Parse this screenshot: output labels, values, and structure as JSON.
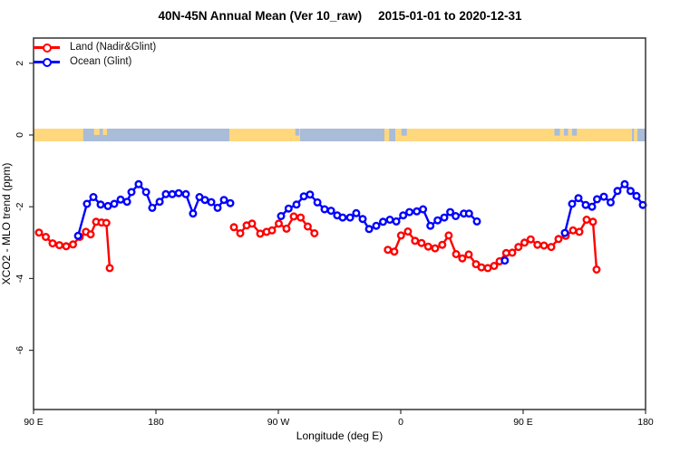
{
  "header": {
    "title_main": "40N-45N Annual Mean (Ver 10_raw)",
    "title_dates": "2015-01-01 to 2020-12-31"
  },
  "legend": {
    "land_label": "Land (Nadir&Glint)",
    "ocean_label": "Ocean (Glint)"
  },
  "colors": {
    "land_series": "#ff0000",
    "ocean_series": "#0000ff",
    "map_land": "#ffd87e",
    "map_ocean": "#a9bcd8",
    "axis": "#333333",
    "text": "#000000"
  },
  "chart_data": {
    "type": "line",
    "title": "40N-45N Annual Mean (Ver 10_raw)  2015-01-01 to 2020-12-31",
    "xlabel": "Longitude (deg E)",
    "ylabel": "XCO2 - MLO trend (ppm)",
    "x_axis": {
      "note": "axis spans 450 deg of longitude starting at 90E and wrapping past 180 twice",
      "range_deg": [
        0,
        450
      ],
      "ticks": [
        {
          "deg": 0,
          "label": "90 E"
        },
        {
          "deg": 90,
          "label": "180"
        },
        {
          "deg": 180,
          "label": "90 W"
        },
        {
          "deg": 270,
          "label": "0"
        },
        {
          "deg": 360,
          "label": "90 E"
        },
        {
          "deg": 450,
          "label": "180"
        }
      ]
    },
    "y_axis": {
      "range": [
        -7.65,
        2.7
      ],
      "ticks": [
        {
          "v": 2,
          "label": "2"
        },
        {
          "v": 0,
          "label": "0"
        },
        {
          "v": -2,
          "label": "-2"
        },
        {
          "v": -4,
          "label": "-4"
        },
        {
          "v": -6,
          "label": "-6"
        }
      ],
      "grid": false
    },
    "legend_position": "top-left",
    "map_band": {
      "center_value": 0,
      "land_segments_deg": [
        [
          0,
          36.5
        ],
        [
          144,
          196
        ],
        [
          258,
          261.5
        ],
        [
          266,
          440
        ],
        [
          441.5,
          444
        ]
      ],
      "island_segments_deg": [
        [
          44.5,
          48.5
        ],
        [
          51,
          54
        ]
      ],
      "water_patches_deg": [
        [
          192.5,
          195.5
        ],
        [
          270.5,
          274.5
        ],
        [
          383,
          387
        ],
        [
          390,
          393
        ],
        [
          396,
          399.5
        ]
      ]
    },
    "series": [
      {
        "name": "Land (Nadir&Glint)",
        "color": "#ff0000",
        "segments": [
          [
            [
              4,
              -2.72
            ],
            [
              9,
              -2.84
            ],
            [
              14,
              -3.02
            ],
            [
              19,
              -3.07
            ],
            [
              24,
              -3.1
            ],
            [
              29,
              -3.05
            ],
            [
              34,
              -2.84
            ],
            [
              38.5,
              -2.7
            ],
            [
              42,
              -2.77
            ],
            [
              46,
              -2.42
            ],
            [
              50,
              -2.44
            ],
            [
              53.5,
              -2.45
            ],
            [
              56,
              -3.71
            ]
          ],
          [
            [
              147.3,
              -2.57
            ],
            [
              152,
              -2.74
            ],
            [
              156.7,
              -2.52
            ],
            [
              160.7,
              -2.47
            ],
            [
              166.7,
              -2.75
            ],
            [
              171.3,
              -2.7
            ],
            [
              175.3,
              -2.66
            ],
            [
              180.3,
              -2.47
            ],
            [
              186,
              -2.61
            ],
            [
              191.3,
              -2.27
            ],
            [
              196.4,
              -2.3
            ],
            [
              201.6,
              -2.55
            ],
            [
              206.5,
              -2.74
            ]
          ],
          [
            [
              260.5,
              -3.2
            ],
            [
              265.3,
              -3.25
            ],
            [
              270.2,
              -2.8
            ],
            [
              275.3,
              -2.69
            ],
            [
              280.5,
              -2.95
            ],
            [
              285.3,
              -3.01
            ],
            [
              290.2,
              -3.11
            ],
            [
              295.3,
              -3.16
            ],
            [
              300.5,
              -3.06
            ],
            [
              305.3,
              -2.8
            ],
            [
              310.7,
              -3.32
            ],
            [
              315.3,
              -3.44
            ],
            [
              320,
              -3.33
            ],
            [
              325.3,
              -3.6
            ],
            [
              329.3,
              -3.69
            ],
            [
              334,
              -3.71
            ],
            [
              338.7,
              -3.65
            ],
            [
              342.7,
              -3.52
            ],
            [
              347.5,
              -3.29
            ],
            [
              352,
              -3.28
            ],
            [
              356.5,
              -3.12
            ],
            [
              361,
              -3.0
            ],
            [
              365.5,
              -2.91
            ],
            [
              370.5,
              -3.06
            ],
            [
              375.3,
              -3.08
            ],
            [
              380.7,
              -3.12
            ],
            [
              386,
              -2.9
            ],
            [
              391.3,
              -2.81
            ],
            [
              396.7,
              -2.66
            ],
            [
              401.3,
              -2.7
            ],
            [
              406.7,
              -2.36
            ],
            [
              411.3,
              -2.42
            ],
            [
              414,
              -3.75
            ]
          ]
        ]
      },
      {
        "name": "Ocean (Glint)",
        "color": "#0000ff",
        "segments": [
          [
            [
              32.7,
              -2.81
            ],
            [
              39.3,
              -1.92
            ],
            [
              44,
              -1.73
            ],
            [
              49.3,
              -1.94
            ],
            [
              54.7,
              -1.98
            ],
            [
              59.3,
              -1.92
            ],
            [
              64,
              -1.8
            ],
            [
              68.7,
              -1.86
            ],
            [
              72,
              -1.59
            ],
            [
              77.3,
              -1.37
            ],
            [
              82.7,
              -1.59
            ],
            [
              87.3,
              -2.03
            ],
            [
              92.7,
              -1.86
            ],
            [
              97.3,
              -1.65
            ],
            [
              102,
              -1.65
            ],
            [
              106.7,
              -1.62
            ],
            [
              112,
              -1.65
            ],
            [
              117.3,
              -2.19
            ],
            [
              122,
              -1.73
            ],
            [
              126,
              -1.81
            ],
            [
              130.7,
              -1.87
            ],
            [
              135.3,
              -2.03
            ],
            [
              140,
              -1.81
            ],
            [
              144.7,
              -1.9
            ]
          ],
          [
            [
              182,
              -2.26
            ],
            [
              187.5,
              -2.05
            ],
            [
              193.3,
              -1.94
            ],
            [
              198.7,
              -1.71
            ],
            [
              203.3,
              -1.66
            ],
            [
              208.7,
              -1.88
            ],
            [
              214,
              -2.07
            ],
            [
              218.7,
              -2.11
            ],
            [
              223.3,
              -2.24
            ],
            [
              227.3,
              -2.3
            ],
            [
              232.7,
              -2.3
            ],
            [
              237.3,
              -2.18
            ],
            [
              242,
              -2.34
            ],
            [
              246.7,
              -2.62
            ],
            [
              252,
              -2.53
            ],
            [
              257,
              -2.42
            ],
            [
              262,
              -2.36
            ],
            [
              266.7,
              -2.41
            ],
            [
              271.8,
              -2.24
            ],
            [
              276.4,
              -2.15
            ],
            [
              281.8,
              -2.13
            ],
            [
              286.4,
              -2.07
            ],
            [
              291.8,
              -2.53
            ],
            [
              297.1,
              -2.38
            ],
            [
              302,
              -2.3
            ],
            [
              306.4,
              -2.15
            ],
            [
              310.4,
              -2.26
            ],
            [
              316.4,
              -2.19
            ],
            [
              320.2,
              -2.19
            ],
            [
              326,
              -2.41
            ]
          ],
          [
            [
              346.5,
              -3.5
            ]
          ],
          [
            [
              390.7,
              -2.73
            ],
            [
              396,
              -1.92
            ],
            [
              400.7,
              -1.76
            ],
            [
              406,
              -1.95
            ],
            [
              410.7,
              -2.0
            ],
            [
              414.3,
              -1.79
            ],
            [
              419.3,
              -1.72
            ],
            [
              424.3,
              -1.88
            ],
            [
              429.3,
              -1.56
            ],
            [
              434.7,
              -1.37
            ],
            [
              439,
              -1.56
            ],
            [
              443.3,
              -1.7
            ],
            [
              448,
              -1.95
            ]
          ]
        ]
      }
    ]
  }
}
